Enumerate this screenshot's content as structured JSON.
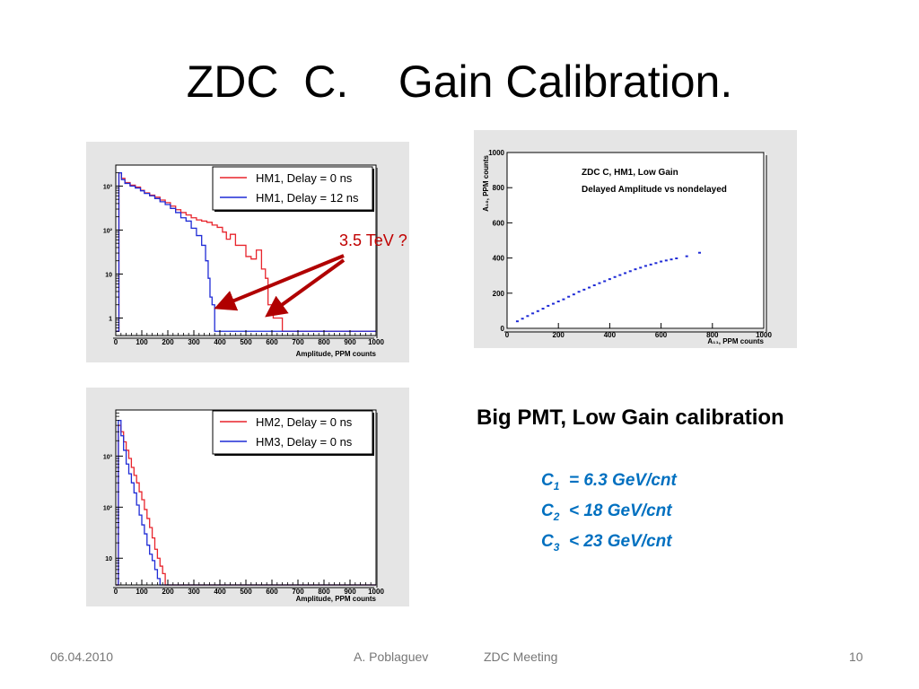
{
  "slide": {
    "title": "ZDC  C.    Gain Calibration.",
    "annotation": "3.5 TeV ?",
    "subheading": "Big PMT,  Low Gain  calibration",
    "calibration": [
      {
        "symbol": "C",
        "sub": "1",
        "relation": "= 6.3 GeV/cnt"
      },
      {
        "symbol": "C",
        "sub": "2",
        "relation": "<  18  GeV/cnt"
      },
      {
        "symbol": "C",
        "sub": "3",
        "relation": "<  23  GeV/cnt"
      }
    ],
    "footer": {
      "date": "06.04.2010",
      "author": "A. Poblaguev",
      "event": "ZDC Meeting",
      "page": "10"
    },
    "colors": {
      "red": "#e8242c",
      "blue": "#1f2bd6",
      "accent": "#c00000",
      "calib": "#0070c0"
    }
  },
  "chart_data": [
    {
      "type": "line",
      "xlabel": "Amplitude, PPM counts",
      "xlim": [
        0,
        1000
      ],
      "y_scale": "log",
      "ylim": [
        0.4,
        3000
      ],
      "x_ticks": [
        "0",
        "100",
        "200",
        "300",
        "400",
        "500",
        "600",
        "700",
        "800",
        "900",
        "1000"
      ],
      "y_ticks": [
        {
          "v": 1,
          "l": "1"
        },
        {
          "v": 10,
          "l": "10"
        },
        {
          "v": 100,
          "l": "10²"
        },
        {
          "v": 1000,
          "l": "10³"
        }
      ],
      "series": [
        {
          "name": "HM1, Delay =   0 ns",
          "color": "#e8242c",
          "points": [
            [
              0,
              0.5
            ],
            [
              12,
              2000
            ],
            [
              22,
              1500
            ],
            [
              35,
              1200
            ],
            [
              55,
              1050
            ],
            [
              75,
              950
            ],
            [
              95,
              800
            ],
            [
              110,
              700
            ],
            [
              130,
              620
            ],
            [
              150,
              560
            ],
            [
              170,
              480
            ],
            [
              190,
              420
            ],
            [
              210,
              350
            ],
            [
              230,
              290
            ],
            [
              250,
              250
            ],
            [
              270,
              220
            ],
            [
              290,
              190
            ],
            [
              310,
              170
            ],
            [
              330,
              160
            ],
            [
              350,
              150
            ],
            [
              370,
              130
            ],
            [
              390,
              115
            ],
            [
              410,
              90
            ],
            [
              425,
              62
            ],
            [
              440,
              80
            ],
            [
              460,
              45
            ],
            [
              480,
              45
            ],
            [
              500,
              25
            ],
            [
              520,
              22
            ],
            [
              540,
              35
            ],
            [
              560,
              13
            ],
            [
              575,
              8
            ],
            [
              585,
              2
            ],
            [
              595,
              2
            ],
            [
              605,
              1
            ],
            [
              615,
              1
            ],
            [
              630,
              1
            ],
            [
              640,
              0.5
            ],
            [
              1000,
              0.5
            ]
          ]
        },
        {
          "name": "HM1, Delay = 12 ns",
          "color": "#1f2bd6",
          "points": [
            [
              0,
              0.5
            ],
            [
              12,
              2000
            ],
            [
              22,
              1400
            ],
            [
              35,
              1150
            ],
            [
              55,
              1000
            ],
            [
              75,
              900
            ],
            [
              95,
              780
            ],
            [
              110,
              680
            ],
            [
              130,
              600
            ],
            [
              150,
              520
            ],
            [
              170,
              440
            ],
            [
              190,
              380
            ],
            [
              210,
              310
            ],
            [
              230,
              250
            ],
            [
              250,
              190
            ],
            [
              270,
              160
            ],
            [
              290,
              110
            ],
            [
              310,
              75
            ],
            [
              330,
              45
            ],
            [
              345,
              20
            ],
            [
              355,
              8
            ],
            [
              362,
              3
            ],
            [
              370,
              2
            ],
            [
              380,
              0.5
            ],
            [
              1000,
              0.5
            ]
          ]
        }
      ],
      "legend_position": "top-right"
    },
    {
      "type": "scatter",
      "title": "ZDC C, HM1, Low Gain",
      "subtitle": "Delayed Amplitude vs nondelayed",
      "xlabel": "A₁₁, PPM counts",
      "ylabel": "A₁₀, PPM counts",
      "xlim": [
        0,
        1000
      ],
      "ylim": [
        0,
        1000
      ],
      "x_ticks": [
        "0",
        "200",
        "400",
        "600",
        "800",
        "1000"
      ],
      "y_ticks": [
        "0",
        "200",
        "400",
        "600",
        "800",
        "1000"
      ],
      "series": [
        {
          "color": "#1f2bd6",
          "points": [
            [
              40,
              40
            ],
            [
              60,
              55
            ],
            [
              80,
              70
            ],
            [
              100,
              85
            ],
            [
              120,
              98
            ],
            [
              140,
              112
            ],
            [
              160,
              128
            ],
            [
              180,
              140
            ],
            [
              200,
              153
            ],
            [
              220,
              165
            ],
            [
              240,
              180
            ],
            [
              260,
              193
            ],
            [
              280,
              208
            ],
            [
              300,
              220
            ],
            [
              320,
              232
            ],
            [
              340,
              245
            ],
            [
              360,
              257
            ],
            [
              380,
              268
            ],
            [
              400,
              280
            ],
            [
              420,
              292
            ],
            [
              440,
              303
            ],
            [
              460,
              314
            ],
            [
              480,
              325
            ],
            [
              500,
              336
            ],
            [
              520,
              345
            ],
            [
              540,
              355
            ],
            [
              560,
              363
            ],
            [
              580,
              371
            ],
            [
              600,
              380
            ],
            [
              620,
              386
            ],
            [
              640,
              392
            ],
            [
              660,
              398
            ],
            [
              700,
              410
            ],
            [
              750,
              430
            ]
          ]
        }
      ]
    },
    {
      "type": "line",
      "xlabel": "Amplitude, PPM counts",
      "xlim": [
        0,
        1000
      ],
      "y_scale": "log",
      "ylim": [
        3,
        8000
      ],
      "x_ticks": [
        "0",
        "100",
        "200",
        "300",
        "400",
        "500",
        "600",
        "700",
        "800",
        "900",
        "1000"
      ],
      "y_ticks": [
        {
          "v": 10,
          "l": "10"
        },
        {
          "v": 100,
          "l": "10²"
        },
        {
          "v": 1000,
          "l": "10³"
        }
      ],
      "series": [
        {
          "name": "HM2, Delay =   0 ns",
          "color": "#e8242c",
          "points": [
            [
              0,
              3
            ],
            [
              10,
              4000
            ],
            [
              20,
              3000
            ],
            [
              30,
              1900
            ],
            [
              40,
              1300
            ],
            [
              50,
              900
            ],
            [
              60,
              600
            ],
            [
              70,
              420
            ],
            [
              80,
              300
            ],
            [
              90,
              200
            ],
            [
              100,
              140
            ],
            [
              110,
              90
            ],
            [
              120,
              60
            ],
            [
              130,
              40
            ],
            [
              140,
              25
            ],
            [
              150,
              15
            ],
            [
              160,
              10
            ],
            [
              170,
              7
            ],
            [
              180,
              5
            ],
            [
              190,
              3
            ],
            [
              1000,
              3
            ]
          ]
        },
        {
          "name": "HM3, Delay =   0 ns",
          "color": "#1f2bd6",
          "points": [
            [
              0,
              3
            ],
            [
              10,
              5000
            ],
            [
              20,
              2500
            ],
            [
              30,
              1300
            ],
            [
              40,
              700
            ],
            [
              50,
              450
            ],
            [
              60,
              300
            ],
            [
              70,
              190
            ],
            [
              80,
              110
            ],
            [
              90,
              70
            ],
            [
              100,
              45
            ],
            [
              110,
              30
            ],
            [
              120,
              18
            ],
            [
              130,
              12
            ],
            [
              140,
              9
            ],
            [
              150,
              6
            ],
            [
              160,
              4
            ],
            [
              170,
              3
            ],
            [
              1000,
              3
            ]
          ]
        }
      ],
      "legend_position": "top-right"
    }
  ]
}
